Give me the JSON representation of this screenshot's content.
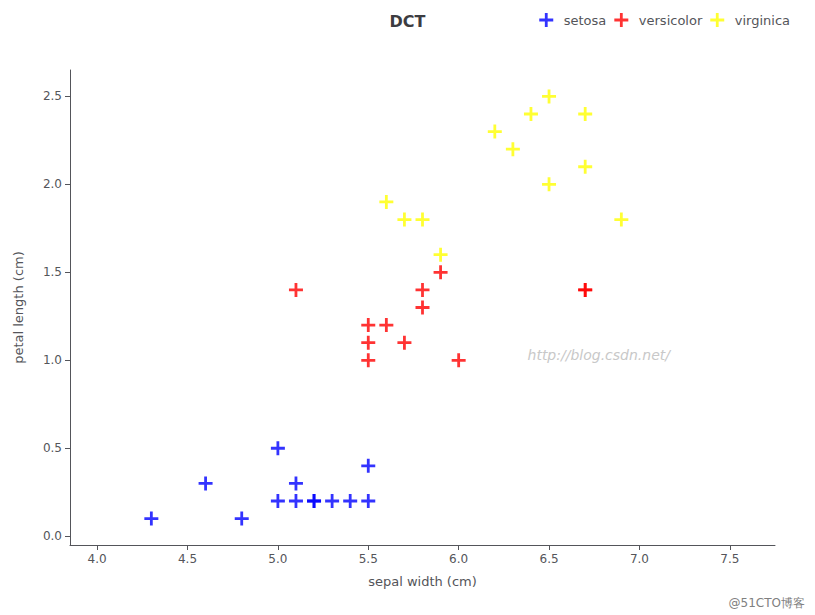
{
  "chart_data": {
    "type": "scatter",
    "title": "DCT",
    "xlabel": "sepal width (cm)",
    "ylabel": "petal length (cm)",
    "xlim": [
      3.85,
      7.75
    ],
    "ylim": [
      -0.05,
      2.65
    ],
    "xticks": [
      {
        "value": 4.0,
        "label": "4.0"
      },
      4.5,
      {
        "value": 5.0,
        "label": "5.0"
      },
      5.5,
      {
        "value": 6.0,
        "label": "6.0"
      },
      6.5,
      {
        "value": 7.0,
        "label": "7.0"
      },
      7.5
    ],
    "yticks": [
      {
        "value": 0.0,
        "label": "0.0"
      },
      0.5,
      {
        "value": 1.0,
        "label": "1.0"
      },
      1.5,
      {
        "value": 2.0,
        "label": "2.0"
      },
      2.5
    ],
    "grid": false,
    "legend": "upper right",
    "marker": "plus",
    "series": [
      {
        "name": "setosa",
        "color": "blue",
        "x": [
          4.3,
          4.6,
          4.8,
          5.0,
          5.0,
          5.1,
          5.1,
          5.2,
          5.2,
          5.3,
          5.4,
          5.5,
          5.5
        ],
        "values": [
          0.1,
          0.3,
          0.1,
          0.2,
          0.5,
          0.2,
          0.3,
          0.2,
          0.2,
          0.2,
          0.2,
          0.2,
          0.4
        ]
      },
      {
        "name": "versicolor",
        "color": "red",
        "x": [
          5.1,
          5.5,
          5.5,
          5.5,
          5.6,
          5.7,
          5.8,
          5.8,
          5.9,
          6.0,
          6.7,
          6.7
        ],
        "values": [
          1.4,
          1.0,
          1.1,
          1.2,
          1.2,
          1.1,
          1.3,
          1.4,
          1.5,
          1.0,
          1.4,
          1.4
        ]
      },
      {
        "name": "virginica",
        "color": "yellow",
        "x": [
          5.6,
          5.7,
          5.8,
          5.9,
          6.2,
          6.3,
          6.4,
          6.5,
          6.5,
          6.7,
          6.7,
          6.9
        ],
        "values": [
          1.9,
          1.8,
          1.8,
          1.6,
          2.3,
          2.2,
          2.4,
          2.0,
          2.5,
          2.4,
          2.1,
          1.8
        ]
      }
    ],
    "annotations": [
      "http://blog.csdn.net/",
      "@51CTO博客"
    ]
  }
}
